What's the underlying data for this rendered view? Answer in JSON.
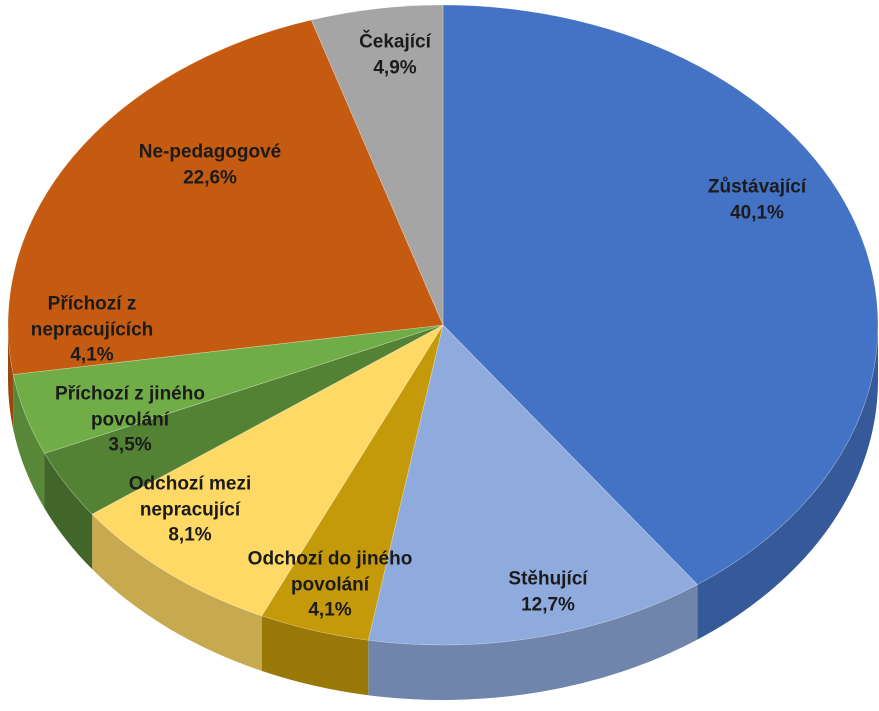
{
  "chart_data": {
    "type": "pie",
    "categories": [
      "Zůstávající",
      "Stěhující",
      "Odchozí do jiného povolání",
      "Odchozí mezi nepracující",
      "Příchozí z jiného povolání",
      "Příchozí z nepracujících",
      "Ne-pedagogové",
      "Čekající"
    ],
    "values": [
      40.1,
      12.7,
      4.1,
      8.1,
      3.5,
      4.1,
      22.6,
      4.9
    ],
    "value_labels": [
      "40,1%",
      "12,7%",
      "4,1%",
      "8,1%",
      "3,5%",
      "4,1%",
      "22,6%",
      "4,9%"
    ],
    "colors": [
      "#4472c4",
      "#8faadc",
      "#c49a0a",
      "#ffd966",
      "#548235",
      "#70ad47",
      "#c55a11",
      "#a5a5a5"
    ]
  }
}
